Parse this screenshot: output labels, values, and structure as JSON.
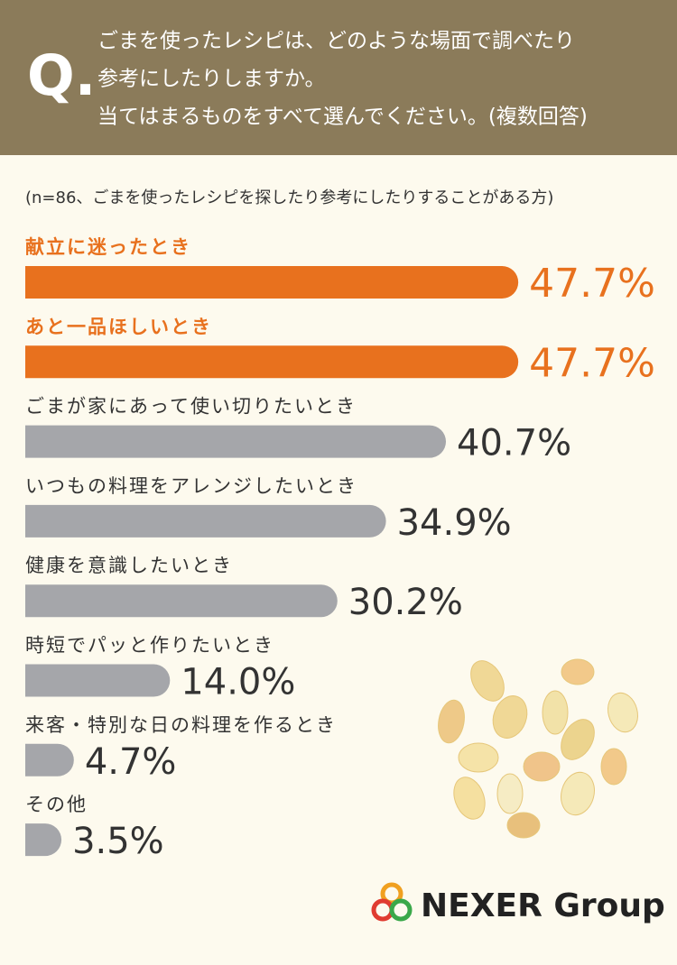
{
  "chart_data": {
    "type": "bar",
    "orientation": "horizontal",
    "question_mark": "Q.",
    "title": [
      "ごまを使ったレシピは、どのような場面で調べたり",
      "参考にしたりしますか。",
      "当てはまるものをすべて選んでください。(複数回答)"
    ],
    "subtitle": "(n=86、ごまを使ったレシピを探したり参考にしたりすることがある方)",
    "categories": [
      "献立に迷ったとき",
      "あと一品ほしいとき",
      "ごまが家にあって使い切りたいとき",
      "いつもの料理をアレンジしたいとき",
      "健康を意識したいとき",
      "時短でパッと作りたいとき",
      "来客・特別な日の料理を作るとき",
      "その他"
    ],
    "values": [
      47.7,
      47.7,
      40.7,
      34.9,
      30.2,
      14.0,
      4.7,
      3.5
    ],
    "value_labels": [
      "47.7%",
      "47.7%",
      "40.7%",
      "34.9%",
      "30.2%",
      "14.0%",
      "4.7%",
      "3.5%"
    ],
    "colors": [
      "#e8711e",
      "#e8711e",
      "#a5a6aa",
      "#a5a6aa",
      "#a5a6aa",
      "#a5a6aa",
      "#a5a6aa",
      "#a5a6aa"
    ],
    "logo": "NEXER Group"
  }
}
